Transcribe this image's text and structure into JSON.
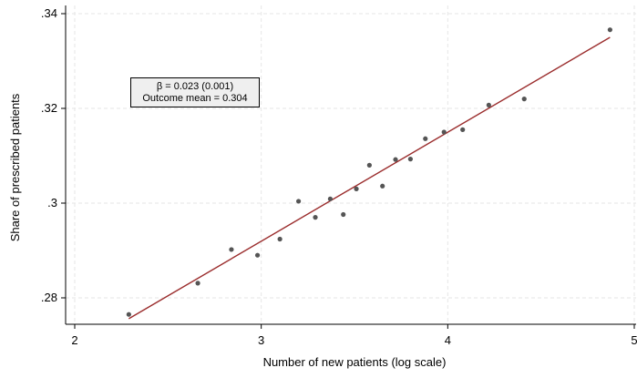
{
  "chart_data": {
    "type": "scatter",
    "xlabel": "Number of new patients (log scale)",
    "ylabel": "Share of prescribed patients",
    "xlim": [
      2,
      5
    ],
    "ylim": [
      0.2735,
      0.3375
    ],
    "x_ticks": [
      2,
      3,
      4,
      5
    ],
    "x_tick_labels": [
      "2",
      "3",
      "4",
      "5"
    ],
    "y_ticks": [
      0.28,
      0.3,
      0.32,
      0.34
    ],
    "y_tick_labels": [
      ".28",
      ".3",
      ".32",
      ".34"
    ],
    "grid": true,
    "points": [
      {
        "x": 2.29,
        "y": 0.2765
      },
      {
        "x": 2.66,
        "y": 0.2831
      },
      {
        "x": 2.84,
        "y": 0.2902
      },
      {
        "x": 2.98,
        "y": 0.289
      },
      {
        "x": 3.1,
        "y": 0.2924
      },
      {
        "x": 3.2,
        "y": 0.3004
      },
      {
        "x": 3.29,
        "y": 0.297
      },
      {
        "x": 3.37,
        "y": 0.3009
      },
      {
        "x": 3.44,
        "y": 0.2976
      },
      {
        "x": 3.51,
        "y": 0.303
      },
      {
        "x": 3.58,
        "y": 0.308
      },
      {
        "x": 3.65,
        "y": 0.3036
      },
      {
        "x": 3.72,
        "y": 0.3092
      },
      {
        "x": 3.8,
        "y": 0.3093
      },
      {
        "x": 3.88,
        "y": 0.3136
      },
      {
        "x": 3.98,
        "y": 0.315
      },
      {
        "x": 4.08,
        "y": 0.3155
      },
      {
        "x": 4.22,
        "y": 0.3207
      },
      {
        "x": 4.41,
        "y": 0.322
      },
      {
        "x": 4.87,
        "y": 0.3366
      }
    ],
    "fit_line": {
      "x": [
        2.29,
        4.87
      ],
      "y": [
        0.2756,
        0.335
      ]
    },
    "annotation": {
      "line1": "β = 0.023 (0.001)",
      "line2": "Outcome mean = 0.304"
    },
    "colors": {
      "points": "#555555",
      "fit_line": "#9b2d2d",
      "grid": "#e6e6e6",
      "box_fill": "#efefef"
    }
  }
}
